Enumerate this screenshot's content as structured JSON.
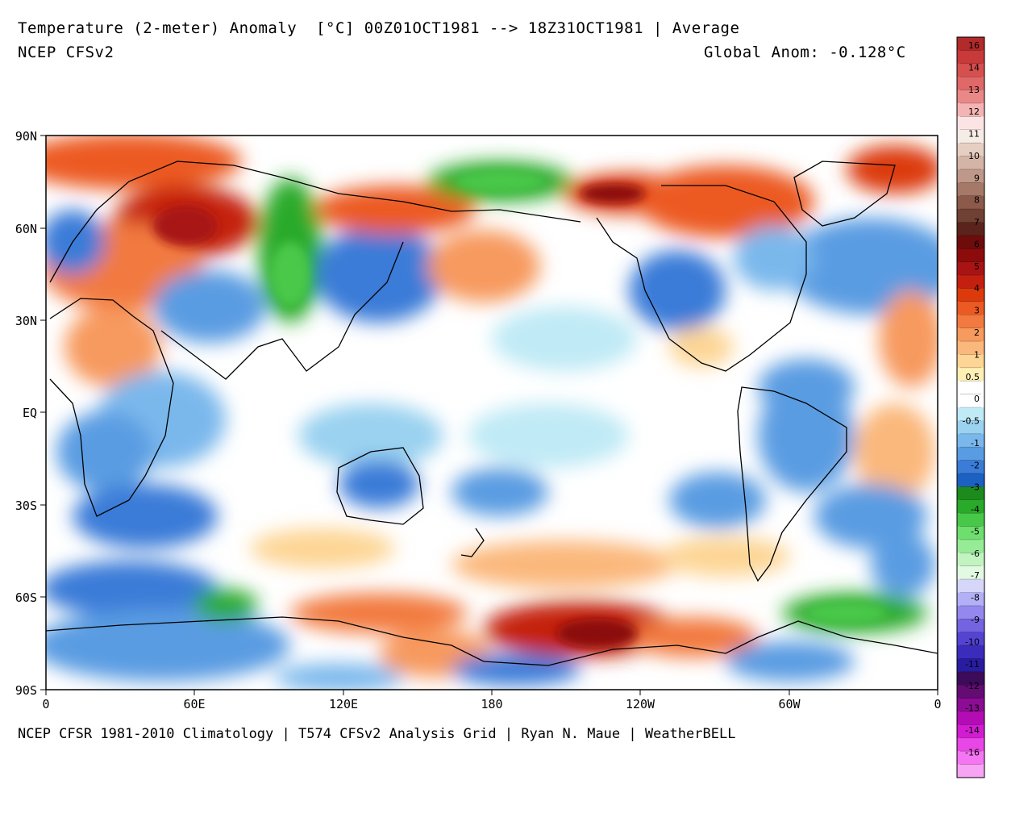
{
  "header": {
    "title": "Temperature (2-meter) Anomaly  [°C] 00Z01OCT1981 --> 18Z31OCT1981 | Average",
    "model": "NCEP CFSv2",
    "global_anomaly": "Global Anom: -0.128°C"
  },
  "footer": "NCEP CFSR 1981-2010 Climatology | T574 CFSv2 Analysis Grid | Ryan N. Maue | WeatherBELL",
  "map": {
    "lat_labels": [
      "90N",
      "60N",
      "30N",
      "EQ",
      "30S",
      "60S",
      "90S"
    ],
    "lon_labels": [
      "0",
      "60E",
      "120E",
      "180",
      "120W",
      "60W",
      "0"
    ]
  },
  "colorbar": {
    "labels": [
      "16",
      "14",
      "13",
      "12",
      "11",
      "10",
      "9",
      "8",
      "7",
      "6",
      "5",
      "4",
      "3",
      "2",
      "1",
      "0.5",
      "0",
      "-0.5",
      "-1",
      "-2",
      "-3",
      "-4",
      "-5",
      "-6",
      "-7",
      "-8",
      "-9",
      "-10",
      "-11",
      "-12",
      "-13",
      "-14",
      "-16"
    ],
    "colors": [
      "#b22a2a",
      "#c83a3a",
      "#d65050",
      "#e06868",
      "#ea8888",
      "#f4b4b4",
      "#fde4e4",
      "#f6ece6",
      "#e6cfc2",
      "#d4b4a6",
      "#be9888",
      "#a67868",
      "#8c5a4a",
      "#704034",
      "#5a241c",
      "#6e0c0c",
      "#8c0c0c",
      "#a81414",
      "#c42010",
      "#dc3a0c",
      "#ec5a24",
      "#f27a40",
      "#f79a5e",
      "#fbb87c",
      "#fdd594",
      "#fef0b4",
      "#ffffff",
      "#ffffff",
      "#bfeaf6",
      "#9ad2f0",
      "#7ab8ec",
      "#5a9ce2",
      "#3a7cd8",
      "#1c60c2",
      "#1c8a1c",
      "#2aaa2a",
      "#48c848",
      "#6ede6e",
      "#96ec96",
      "#c2f4c2",
      "#e2fae2",
      "#d6d6fa",
      "#b4b0f6",
      "#9488ee",
      "#7464e2",
      "#5444d2",
      "#3c2cbc",
      "#2a1ca0",
      "#3c0c5a",
      "#640c74",
      "#8c0c94",
      "#b40cb4",
      "#d21cd2",
      "#e846e6",
      "#f476f2",
      "#f8a4f4"
    ]
  }
}
